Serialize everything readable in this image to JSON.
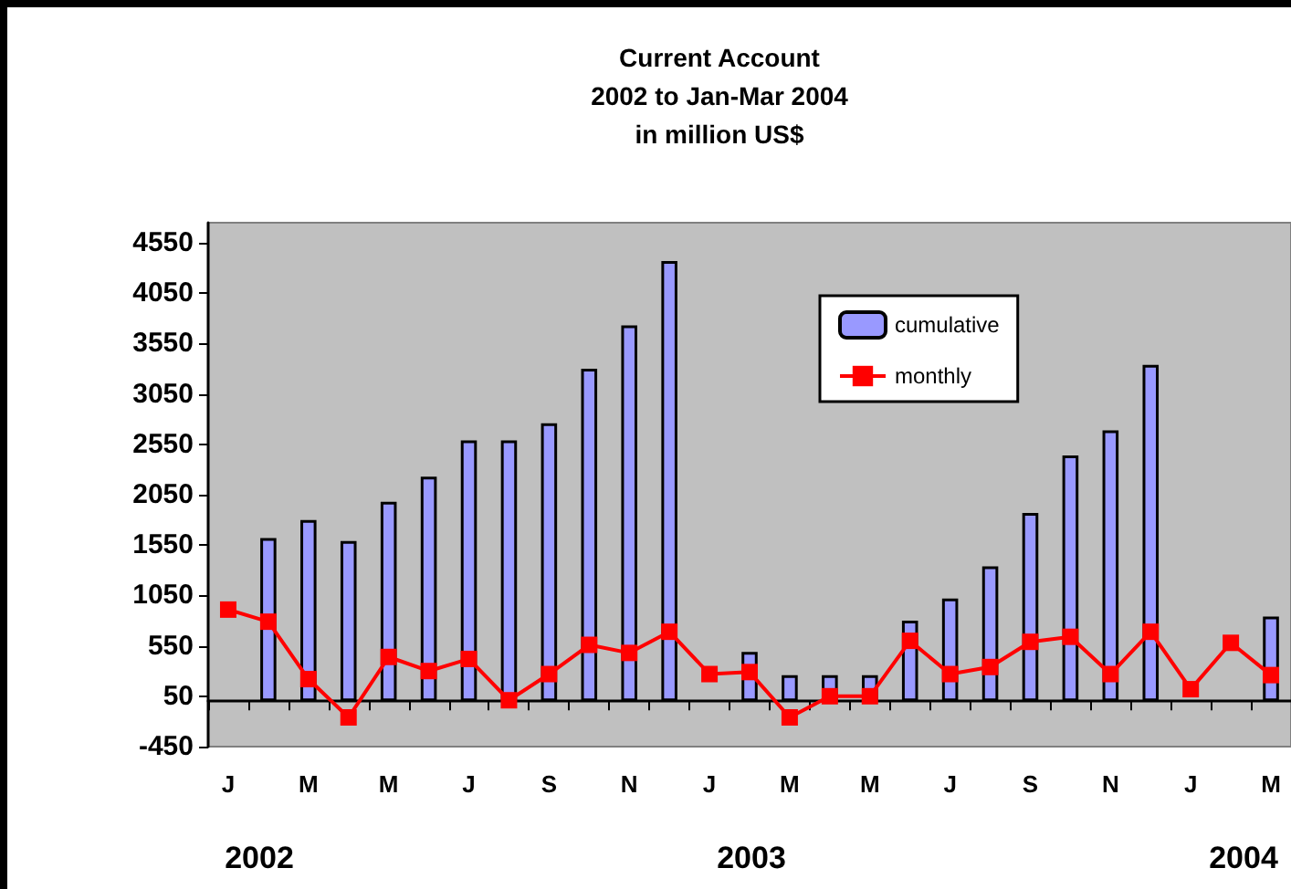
{
  "chart_data": {
    "type": "bar",
    "title": "Current Account\n2002 to Jan-Mar 2004\nin million US$",
    "categories": [
      "J",
      null,
      "M",
      null,
      "M",
      null,
      "J",
      null,
      "S",
      null,
      "N",
      null,
      "J",
      null,
      "M",
      null,
      "M",
      null,
      "J",
      null,
      "S",
      null,
      "N",
      null,
      "J",
      null,
      "M"
    ],
    "series": [
      {
        "name": "cumulative",
        "color": "#9999ff",
        "values": [
          null,
          1620,
          1800,
          1590,
          1980,
          2230,
          2590,
          2590,
          2760,
          3300,
          3730,
          4370,
          null,
          490,
          260,
          260,
          260,
          800,
          1020,
          1340,
          1870,
          2440,
          2690,
          3340,
          null,
          null,
          840
        ]
      },
      {
        "name": "monthly",
        "type": "line",
        "color": "#ff0000",
        "values": [
          910,
          790,
          220,
          -160,
          440,
          300,
          420,
          10,
          270,
          560,
          480,
          690,
          270,
          290,
          -160,
          50,
          50,
          600,
          270,
          340,
          590,
          640,
          270,
          690,
          120,
          580,
          260
        ]
      }
    ],
    "ylim": [
      -450,
      4750
    ],
    "yticks": [
      -450,
      50,
      550,
      1050,
      1550,
      2050,
      2550,
      3050,
      3550,
      4050,
      4550
    ],
    "grid": false,
    "legend": "top right",
    "marker": "square",
    "line_style": "solid",
    "annotations": [
      "2002",
      "2003",
      "2004"
    ]
  }
}
